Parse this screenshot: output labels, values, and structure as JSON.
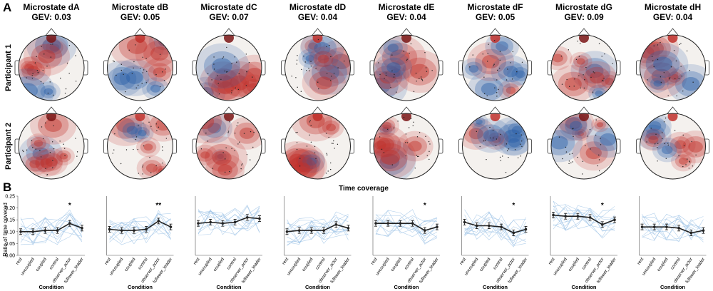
{
  "panel_a_label": "A",
  "panel_b_label": "B",
  "participants": [
    "Participant 1",
    "Participant 2"
  ],
  "microstates": [
    {
      "name": "Microstate dA",
      "gev": "GEV: 0.03"
    },
    {
      "name": "Microstate dB",
      "gev": "GEV: 0.05"
    },
    {
      "name": "Microstate dC",
      "gev": "GEV: 0.07"
    },
    {
      "name": "Microstate dD",
      "gev": "GEV: 0.04"
    },
    {
      "name": "Microstate dE",
      "gev": "GEV: 0.04"
    },
    {
      "name": "Microstate dF",
      "gev": "GEV: 0.05"
    },
    {
      "name": "Microstate dG",
      "gev": "GEV: 0.09"
    },
    {
      "name": "Microstate dH",
      "gev": "GEV: 0.04"
    }
  ],
  "colors": {
    "positive": "#c0302b",
    "negative": "#2a5fa8",
    "neutral": "#f4f1ee",
    "mean_line": "#222222",
    "subject_lines": "#9ec3e6"
  },
  "chart_data": {
    "type": "line",
    "title": "Time coverage",
    "xlabel": "Condition",
    "ylabel": "Ratio of time covered",
    "ylim": [
      0,
      0.25
    ],
    "yticks": [
      "0.00",
      "0.05",
      "0.10",
      "0.15",
      "0.20",
      "0.25"
    ],
    "categories": [
      "rest",
      "uncoupled",
      "coupled",
      "control",
      "observer_actor",
      "follower_leader"
    ],
    "series": [
      {
        "name": "Microstate dA",
        "values": [
          0.1,
          0.1,
          0.105,
          0.105,
          0.135,
          0.115
        ],
        "significance": "*"
      },
      {
        "name": "Microstate dB",
        "values": [
          0.11,
          0.105,
          0.105,
          0.11,
          0.145,
          0.12
        ],
        "significance": "**"
      },
      {
        "name": "Microstate dC",
        "values": [
          0.135,
          0.14,
          0.135,
          0.14,
          0.16,
          0.155
        ],
        "significance": ""
      },
      {
        "name": "Microstate dD",
        "values": [
          0.1,
          0.105,
          0.105,
          0.105,
          0.13,
          0.115
        ],
        "significance": ""
      },
      {
        "name": "Microstate dE",
        "values": [
          0.135,
          0.135,
          0.135,
          0.135,
          0.105,
          0.12
        ],
        "significance": "*"
      },
      {
        "name": "Microstate dF",
        "values": [
          0.14,
          0.125,
          0.125,
          0.12,
          0.095,
          0.11
        ],
        "significance": "*"
      },
      {
        "name": "Microstate dG",
        "values": [
          0.17,
          0.165,
          0.165,
          0.16,
          0.13,
          0.15
        ],
        "significance": "*"
      },
      {
        "name": "Microstate dH",
        "values": [
          0.12,
          0.12,
          0.12,
          0.115,
          0.095,
          0.105
        ],
        "significance": ""
      }
    ]
  }
}
